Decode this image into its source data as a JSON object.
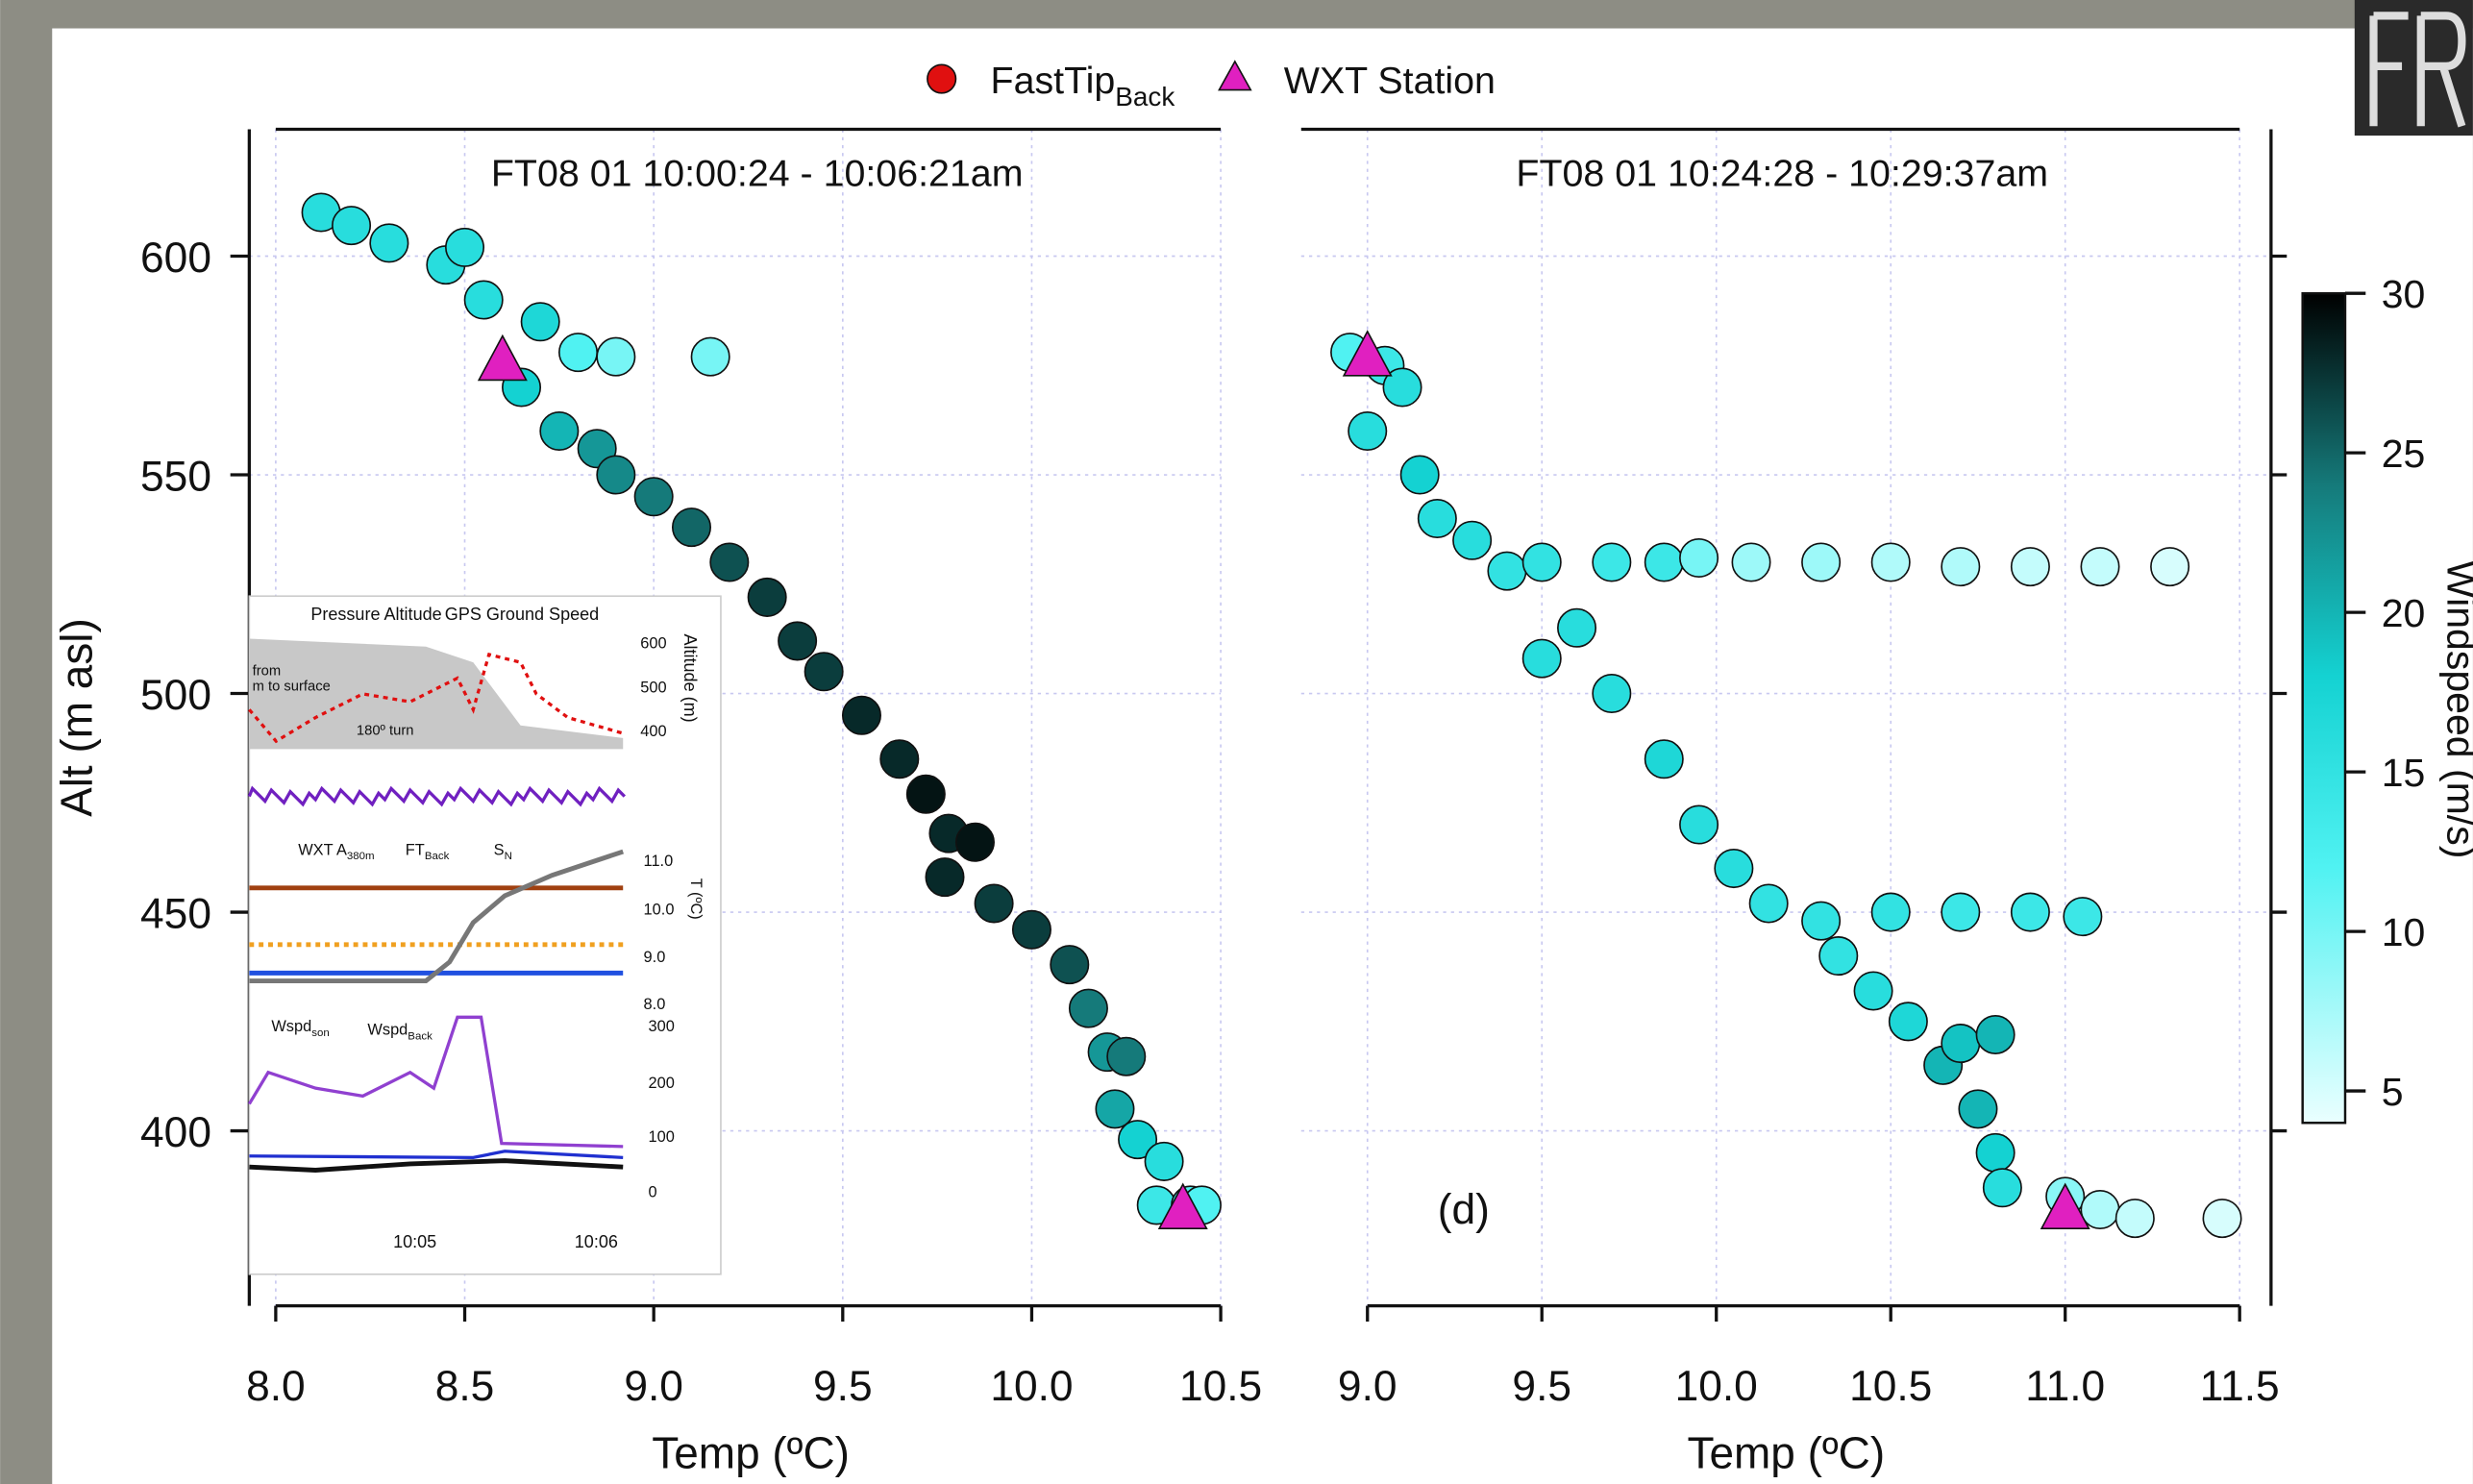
{
  "chart_data": [
    {
      "type": "scatter",
      "title": "FT08 01 10:00:24 - 10:06:21am",
      "x_label": "Temp (ºC)",
      "y_label": "Alt (m asl)",
      "xlim": [
        7.93,
        10.5
      ],
      "ylim": [
        360,
        629
      ],
      "xticks": [
        {
          "value": 8,
          "label": "8.0"
        },
        8.5,
        {
          "value": 9,
          "label": "9.0"
        },
        9.5,
        {
          "value": 10,
          "label": "10.0"
        },
        10.5
      ],
      "yticks": [
        400,
        450,
        500,
        550,
        600
      ],
      "grid": true,
      "points": {
        "x": [
          8.12,
          8.2,
          8.3,
          8.45,
          8.5,
          8.55,
          8.7,
          8.8,
          8.9,
          9.15,
          8.65,
          8.75,
          8.85,
          8.9,
          9.0,
          9.1,
          9.2,
          9.3,
          9.38,
          9.45,
          9.55,
          9.65,
          9.72,
          9.78,
          9.85,
          9.77,
          9.9,
          10.0,
          10.1,
          10.15,
          10.2,
          10.25,
          10.22,
          10.28,
          10.35,
          10.33,
          10.42,
          10.45
        ],
        "values": [
          610,
          607,
          603,
          598,
          602,
          590,
          585,
          578,
          577,
          577,
          570,
          560,
          556,
          550,
          545,
          538,
          530,
          522,
          512,
          505,
          495,
          485,
          477,
          468,
          466,
          458,
          452,
          446,
          438,
          428,
          418,
          417,
          405,
          398,
          393,
          383,
          383,
          383
        ],
        "windspeed": [
          16,
          16,
          16,
          16,
          16,
          16,
          17,
          12,
          10,
          10,
          18,
          20,
          22,
          23,
          24,
          25,
          26,
          27,
          27,
          27,
          28,
          28,
          29,
          28,
          29,
          28,
          27,
          27,
          26,
          24,
          22,
          24,
          21,
          18,
          16,
          14,
          12,
          12
        ]
      },
      "stations": {
        "x": [
          8.6,
          10.4
        ],
        "values": [
          576,
          382
        ]
      }
    },
    {
      "type": "scatter",
      "title": "FT08 01 10:24:28 - 10:29:37am",
      "x_label": "Temp (ºC)",
      "annotation": "(d)",
      "xlim": [
        8.81,
        11.59
      ],
      "ylim": [
        360,
        629
      ],
      "xticks": [
        {
          "value": 9,
          "label": "9.0"
        },
        9.5,
        {
          "value": 10,
          "label": "10.0"
        },
        10.5,
        {
          "value": 11,
          "label": "11.0"
        },
        11.5
      ],
      "yticks": [
        400,
        450,
        500,
        550,
        600
      ],
      "grid": true,
      "points": {
        "x": [
          8.95,
          9.05,
          9.1,
          9.0,
          9.15,
          9.2,
          9.3,
          9.4,
          9.5,
          9.7,
          9.85,
          9.95,
          10.1,
          10.3,
          10.5,
          10.7,
          10.9,
          11.1,
          11.3,
          9.6,
          9.5,
          9.7,
          9.85,
          9.95,
          10.05,
          10.15,
          10.3,
          10.5,
          10.7,
          10.9,
          11.05,
          10.35,
          10.45,
          10.55,
          10.65,
          10.7,
          10.8,
          10.75,
          10.8,
          10.82,
          11.0,
          11.1,
          11.2,
          11.45
        ],
        "values": [
          578,
          575,
          570,
          560,
          550,
          540,
          535,
          528,
          530,
          530,
          530,
          531,
          530,
          530,
          530,
          529,
          529,
          529,
          529,
          515,
          508,
          500,
          485,
          470,
          460,
          452,
          448,
          450,
          450,
          450,
          449,
          440,
          432,
          425,
          415,
          420,
          422,
          405,
          395,
          387,
          385,
          382,
          380,
          380
        ],
        "windspeed": [
          12,
          14,
          16,
          16,
          18,
          16,
          16,
          15,
          15,
          14,
          14,
          10,
          8,
          8,
          7,
          7,
          6,
          6,
          5,
          16,
          16,
          16,
          17,
          16,
          16,
          15,
          15,
          15,
          14,
          14,
          14,
          15,
          16,
          17,
          20,
          19,
          20,
          20,
          18,
          16,
          9,
          7,
          6,
          5
        ]
      },
      "stations": {
        "x": [
          9.0,
          11.0
        ],
        "values": [
          577,
          382
        ]
      }
    }
  ],
  "legend": [
    {
      "name": "FastTip",
      "sub": "Back",
      "color": "#e01010",
      "marker": "circle"
    },
    {
      "name": "WXT Station",
      "color": "#e020c0",
      "marker": "triangle"
    }
  ],
  "colorbar": {
    "label": "Windspeed (m/s)",
    "lim": [
      4,
      30
    ],
    "ticks": [
      5,
      10,
      15,
      20,
      25,
      30
    ],
    "colormap": [
      [
        4,
        "#eaffff"
      ],
      [
        12,
        "#50f2f2"
      ],
      [
        18,
        "#14d2d2"
      ],
      [
        24,
        "#157a7a"
      ],
      [
        30,
        "#000000"
      ]
    ]
  },
  "inset": {
    "labels": [
      {
        "text": "Pressure Altitude"
      },
      {
        "text": "GPS Ground Speed"
      },
      {
        "text": "Altitude (m)"
      },
      {
        "text": "600"
      },
      {
        "text": "500"
      },
      {
        "text": "400"
      },
      {
        "text": "from"
      },
      {
        "text": "m to surface"
      },
      {
        "text": "180º turn"
      },
      {
        "text": "WXT A",
        "sub": "380m"
      },
      {
        "text": "FT",
        "sub": "Back"
      },
      {
        "text": "S",
        "sub": "N"
      },
      {
        "text": "T (ºC)"
      },
      {
        "text": "11.0"
      },
      {
        "text": "10.0"
      },
      {
        "text": "9.0"
      },
      {
        "text": "8.0"
      },
      {
        "text": "Wspd",
        "sub": "son"
      },
      {
        "text": "Wspd",
        "sub": "Back"
      },
      {
        "text": "300"
      },
      {
        "text": "200"
      },
      {
        "text": "100"
      },
      {
        "text": "0"
      },
      {
        "text": "10:05"
      },
      {
        "text": "10:06"
      }
    ]
  }
}
